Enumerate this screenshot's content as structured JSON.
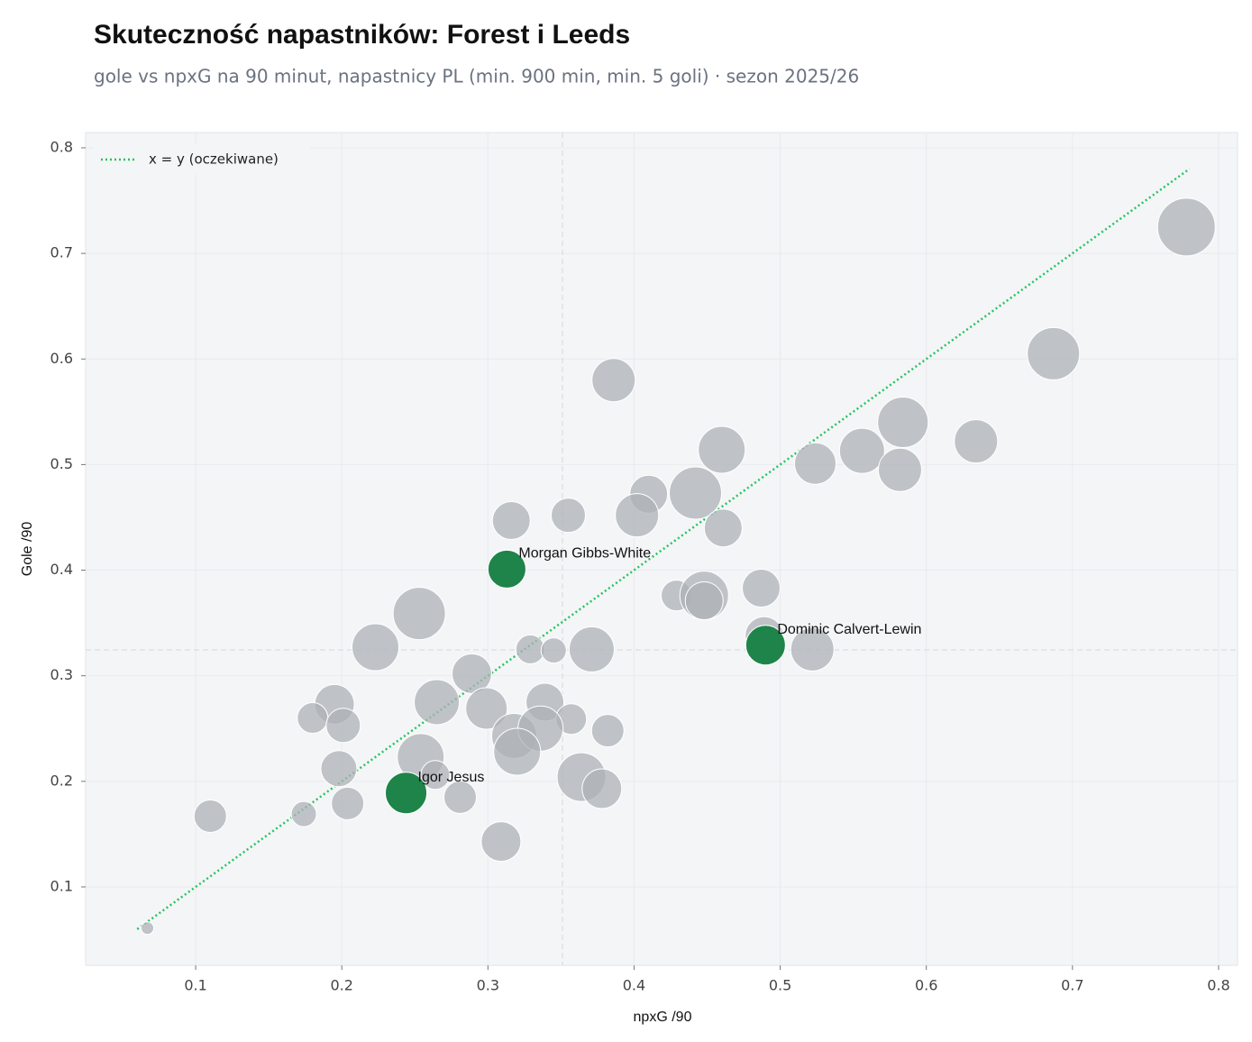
{
  "chart_data": {
    "type": "scatter",
    "title": "Skuteczność napastników: Forest i Leeds",
    "subtitle": "gole vs npxG na 90 minut, napastnicy PL (min. 900 min, min. 5 goli) · sezon 2025/26",
    "x_label": "npxG /90",
    "y_label": "Gole /90",
    "xlim": [
      0.0247,
      0.813
    ],
    "ylim": [
      0.0257,
      0.8145
    ],
    "xticks": [
      0.1,
      0.2,
      0.3,
      0.4,
      0.5,
      0.6,
      0.7,
      0.8
    ],
    "yticks": [
      0.1,
      0.2,
      0.3,
      0.4,
      0.5,
      0.6,
      0.7,
      0.8
    ],
    "grid": true,
    "legend": "upper left",
    "vlines": [
      0.351
    ],
    "hlines": [
      0.3245
    ],
    "series": [
      {
        "color": "#adb1b7",
        "x": [
          0.778,
          0.687,
          0.386,
          0.46,
          0.584,
          0.634,
          0.556,
          0.524,
          0.582,
          0.41,
          0.442,
          0.402,
          0.355,
          0.316,
          0.461,
          0.487,
          0.429,
          0.448,
          0.448,
          0.253,
          0.223,
          0.489,
          0.522,
          0.329,
          0.345,
          0.371,
          0.289,
          0.195,
          0.265,
          0.299,
          0.339,
          0.18,
          0.201,
          0.357,
          0.382,
          0.318,
          0.336,
          0.32,
          0.254,
          0.198,
          0.364,
          0.264,
          0.378,
          0.281,
          0.204,
          0.11,
          0.174,
          0.309,
          0.067
        ],
        "values": [
          0.725,
          0.605,
          0.58,
          0.514,
          0.54,
          0.522,
          0.513,
          0.501,
          0.495,
          0.472,
          0.473,
          0.452,
          0.452,
          0.447,
          0.44,
          0.383,
          0.376,
          0.376,
          0.371,
          0.359,
          0.327,
          0.338,
          0.325,
          0.325,
          0.324,
          0.325,
          0.302,
          0.273,
          0.275,
          0.269,
          0.275,
          0.26,
          0.253,
          0.259,
          0.248,
          0.243,
          0.25,
          0.228,
          0.223,
          0.212,
          0.204,
          0.206,
          0.193,
          0.185,
          0.179,
          0.167,
          0.169,
          0.143,
          0.061
        ],
        "sizes": [
          32,
          29,
          24,
          26,
          28,
          24,
          25,
          23,
          24,
          21,
          29,
          24,
          19,
          21,
          21,
          21,
          17,
          27,
          21,
          29,
          26,
          21,
          24,
          16,
          14,
          25,
          22,
          22,
          25,
          23,
          21,
          17,
          19,
          17,
          18,
          25,
          25,
          26,
          26,
          20,
          27,
          16,
          22,
          18,
          18,
          18,
          14,
          22,
          7
        ]
      },
      {
        "color": "#1e8449",
        "x": [
          0.313,
          0.49,
          0.244
        ],
        "values": [
          0.401,
          0.329,
          0.189
        ],
        "sizes": [
          21,
          22,
          23
        ],
        "labels": [
          "Morgan Gibbs-White",
          "Dominic Calvert-Lewin",
          "Igor Jesus"
        ]
      }
    ],
    "reference_line": {
      "name": "x = y (oczekiwane)",
      "color": "#22c55e",
      "x": [
        0.06,
        0.78
      ],
      "values": [
        0.06,
        0.78
      ]
    }
  }
}
